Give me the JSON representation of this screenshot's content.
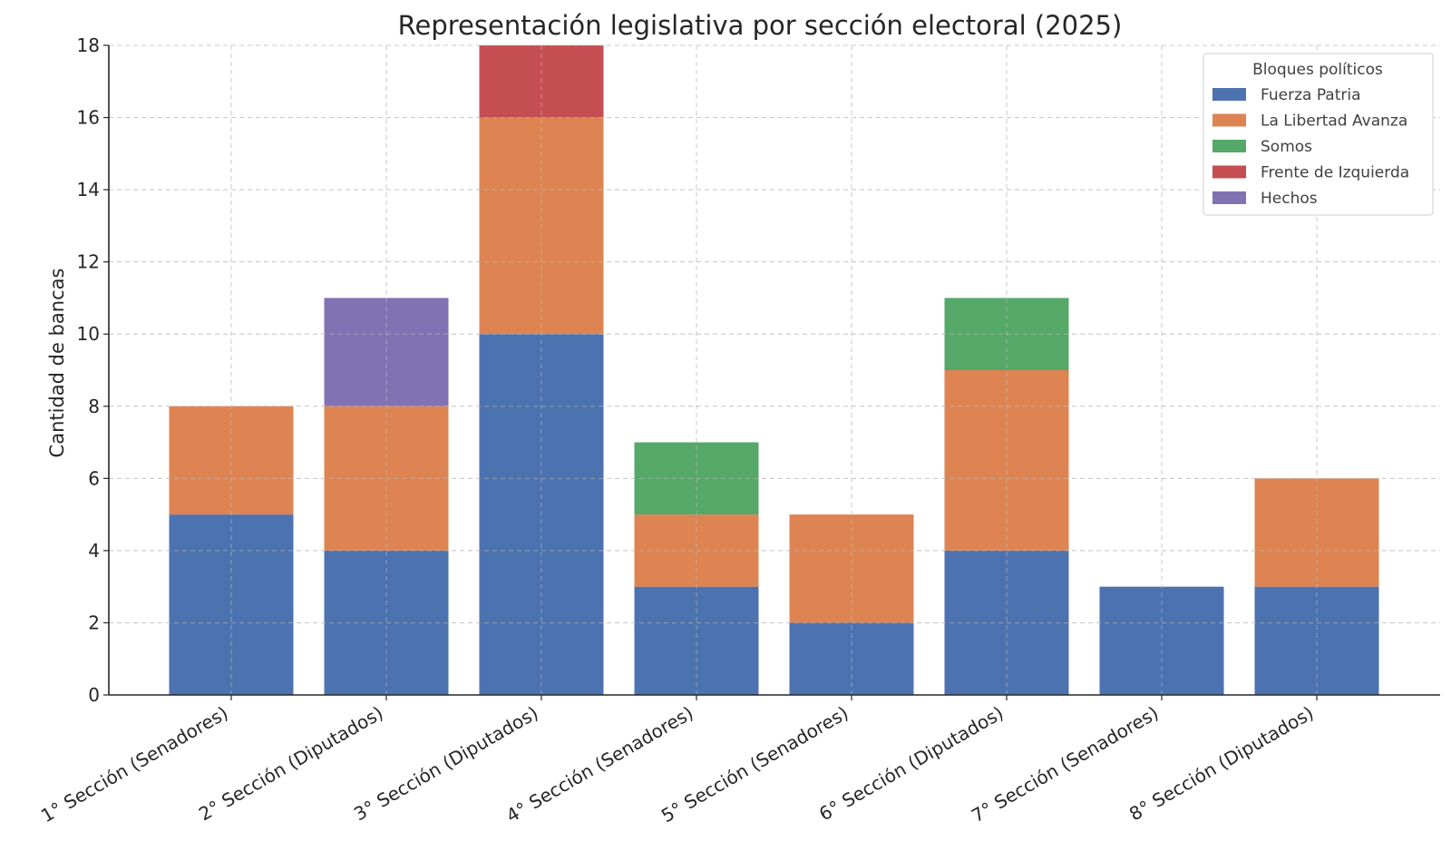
{
  "chart_data": {
    "type": "bar",
    "stacked": true,
    "title": "Representación legislativa por sección electoral (2025)",
    "xlabel": "",
    "ylabel": "Cantidad de bancas",
    "ylim": [
      0,
      18
    ],
    "yticks": [
      0,
      2,
      4,
      6,
      8,
      10,
      12,
      14,
      16,
      18
    ],
    "grid": true,
    "legend_title": "Bloques políticos",
    "legend_position": "top-right",
    "categories": [
      "1° Sección (Senadores)",
      "2° Sección (Diputados)",
      "3° Sección (Diputados)",
      "4° Sección (Senadores)",
      "5° Sección (Senadores)",
      "6° Sección (Diputados)",
      "7° Sección (Senadores)",
      "8° Sección (Diputados)"
    ],
    "series": [
      {
        "name": "Fuerza Patria",
        "color": "#4c72b0",
        "values": [
          5,
          4,
          10,
          3,
          2,
          4,
          3,
          3
        ]
      },
      {
        "name": "La Libertad Avanza",
        "color": "#dd8452",
        "values": [
          3,
          4,
          6,
          2,
          3,
          5,
          0,
          3
        ]
      },
      {
        "name": "Somos",
        "color": "#55a868",
        "values": [
          0,
          0,
          0,
          2,
          0,
          2,
          0,
          0
        ]
      },
      {
        "name": "Frente de Izquierda",
        "color": "#c44e52",
        "values": [
          0,
          0,
          2,
          0,
          0,
          0,
          0,
          0
        ]
      },
      {
        "name": "Hechos",
        "color": "#8172b3",
        "values": [
          0,
          3,
          0,
          0,
          0,
          0,
          0,
          0
        ]
      }
    ]
  }
}
